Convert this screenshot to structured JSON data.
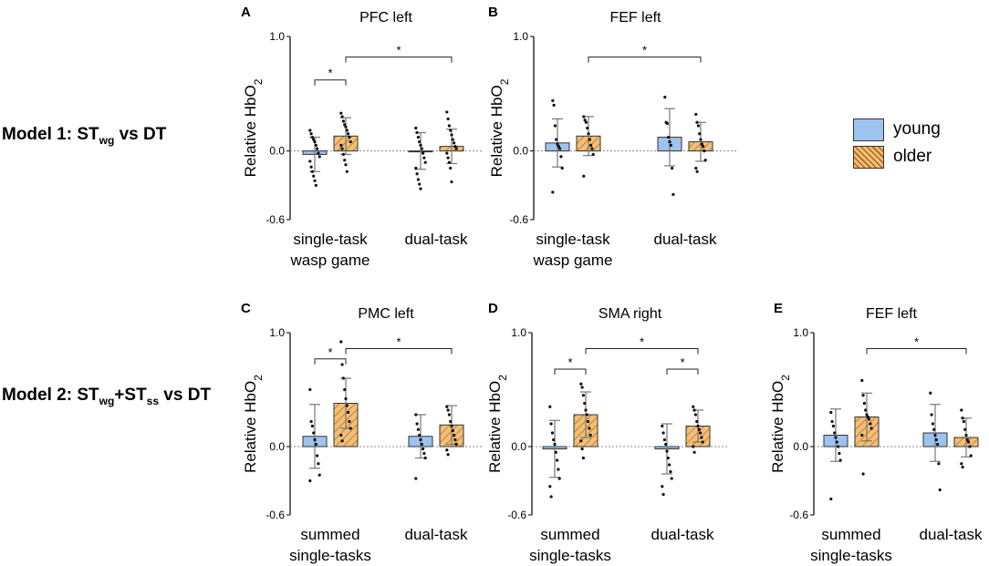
{
  "colors": {
    "young": "#9DC3F0",
    "older": "#F3BF77",
    "hatch": "#A8681E",
    "axis": "#000000",
    "error": "#777777"
  },
  "models": [
    {
      "prefix": "Model 1: ST",
      "sub1": "wg",
      "mid": " vs DT",
      "sub2": "",
      "tail": ""
    },
    {
      "prefix": "Model 2: ST",
      "sub1": "wg",
      "mid": "+ST",
      "sub2": "ss",
      "tail": " vs DT"
    }
  ],
  "legend": {
    "young": "young",
    "older": "older"
  },
  "chart_data": [
    {
      "type": "bar",
      "letter": "A",
      "title": "PFC left",
      "ylabel": "Relative HbO",
      "ylabel_sub": "2",
      "ylim": [
        -0.6,
        1.0
      ],
      "yticks": [
        "1.0",
        "0.0",
        "-0.6"
      ],
      "categories": [
        [
          "single-task",
          "wasp game"
        ],
        [
          "dual-task"
        ]
      ],
      "series": [
        {
          "name": "young",
          "values": [
            -0.03,
            0.0
          ],
          "err": [
            0.15,
            0.16
          ],
          "points": [
            [
              0.18,
              0.15,
              0.12,
              0.1,
              0.08,
              0.05,
              0.02,
              -0.02,
              -0.05,
              -0.09,
              -0.14,
              -0.18,
              -0.22,
              -0.26,
              -0.3
            ],
            [
              0.2,
              0.16,
              0.12,
              0.08,
              0.05,
              0.02,
              -0.02,
              -0.06,
              -0.1,
              -0.15,
              -0.2,
              -0.25,
              -0.29,
              -0.33
            ]
          ]
        },
        {
          "name": "older",
          "values": [
            0.13,
            0.04
          ],
          "err": [
            0.16,
            0.15
          ],
          "points": [
            [
              0.33,
              0.3,
              0.26,
              0.23,
              0.21,
              0.18,
              0.15,
              0.12,
              0.08,
              0.05,
              0.02,
              -0.03,
              -0.08,
              -0.12,
              -0.18
            ],
            [
              0.34,
              0.28,
              0.22,
              0.18,
              0.14,
              0.1,
              0.07,
              0.04,
              0.02,
              -0.02,
              -0.06,
              -0.1,
              -0.15,
              -0.27
            ]
          ]
        }
      ],
      "sig": [
        {
          "g1": 0,
          "s1": 0,
          "g2": 0,
          "s2": 1,
          "y": 0.62,
          "label": "*"
        },
        {
          "g1": 0,
          "s1": 1,
          "g2": 1,
          "s2": 1,
          "y": 0.82,
          "label": "*"
        }
      ]
    },
    {
      "type": "bar",
      "letter": "B",
      "title": "FEF left",
      "ylabel": "Relative HbO",
      "ylabel_sub": "2",
      "ylim": [
        -0.6,
        1.0
      ],
      "yticks": [
        "1.0",
        "0.0",
        "-0.6"
      ],
      "categories": [
        [
          "single-task",
          "wasp game"
        ],
        [
          "dual-task"
        ]
      ],
      "series": [
        {
          "name": "young",
          "values": [
            0.07,
            0.12
          ],
          "err": [
            0.21,
            0.25
          ],
          "points": [
            [
              0.44,
              0.4,
              0.22,
              0.1,
              0.06,
              0.04,
              0.02,
              -0.05,
              -0.15,
              -0.36
            ],
            [
              0.47,
              0.25,
              0.24,
              0.12,
              0.08,
              0.05,
              -0.15,
              -0.38
            ]
          ]
        },
        {
          "name": "older",
          "values": [
            0.13,
            0.08
          ],
          "err": [
            0.17,
            0.17
          ],
          "points": [
            [
              0.3,
              0.27,
              0.25,
              0.2,
              0.15,
              0.1,
              0.05,
              0.02,
              -0.03,
              -0.22
            ],
            [
              0.32,
              0.25,
              0.22,
              0.15,
              0.1,
              0.06,
              0.04,
              0.0,
              -0.08,
              -0.15,
              -0.18
            ]
          ]
        }
      ],
      "sig": [
        {
          "g1": 0,
          "s1": 1,
          "g2": 1,
          "s2": 1,
          "y": 0.82,
          "label": "*"
        }
      ]
    },
    {
      "type": "bar",
      "letter": "C",
      "title": "PMC left",
      "ylabel": "Relative HbO",
      "ylabel_sub": "2",
      "ylim": [
        -0.6,
        1.0
      ],
      "yticks": [
        "1.0",
        "0.0",
        "-0.6"
      ],
      "categories": [
        [
          "summed",
          "single-tasks"
        ],
        [
          "dual-task"
        ]
      ],
      "series": [
        {
          "name": "young",
          "values": [
            0.09,
            0.09
          ],
          "err": [
            0.28,
            0.19
          ],
          "points": [
            [
              0.5,
              0.22,
              0.18,
              0.12,
              0.06,
              0.02,
              -0.08,
              -0.15,
              -0.25,
              -0.3
            ],
            [
              0.28,
              0.2,
              0.15,
              0.1,
              0.06,
              0.02,
              -0.02,
              -0.06,
              -0.1,
              -0.28
            ]
          ]
        },
        {
          "name": "older",
          "values": [
            0.38,
            0.19
          ],
          "err": [
            0.22,
            0.17
          ],
          "points": [
            [
              0.92,
              0.72,
              0.6,
              0.5,
              0.42,
              0.36,
              0.3,
              0.22,
              0.16,
              0.1,
              0.05
            ],
            [
              0.35,
              0.32,
              0.28,
              0.22,
              0.18,
              0.14,
              0.1,
              0.06,
              0.02,
              -0.03,
              -0.07
            ]
          ]
        }
      ],
      "sig": [
        {
          "g1": 0,
          "s1": 0,
          "g2": 0,
          "s2": 1,
          "y": 0.77,
          "label": "*"
        },
        {
          "g1": 0,
          "s1": 1,
          "g2": 1,
          "s2": 1,
          "y": 0.86,
          "label": "*"
        }
      ]
    },
    {
      "type": "bar",
      "letter": "D",
      "title": "SMA right",
      "ylabel": "Relative HbO",
      "ylabel_sub": "2",
      "ylim": [
        -0.6,
        1.0
      ],
      "yticks": [
        "1.0",
        "0.0",
        "-0.6"
      ],
      "categories": [
        [
          "summed",
          "single-tasks"
        ],
        [
          "dual-task"
        ]
      ],
      "series": [
        {
          "name": "young",
          "values": [
            -0.02,
            -0.02
          ],
          "err": [
            0.25,
            0.22
          ],
          "points": [
            [
              0.35,
              0.2,
              0.12,
              0.06,
              0.02,
              -0.05,
              -0.12,
              -0.2,
              -0.28,
              -0.35,
              -0.44
            ],
            [
              0.18,
              0.12,
              0.06,
              0.02,
              -0.04,
              -0.1,
              -0.16,
              -0.22,
              -0.28,
              -0.35,
              -0.42
            ]
          ]
        },
        {
          "name": "older",
          "values": [
            0.28,
            0.18
          ],
          "err": [
            0.2,
            0.14
          ],
          "points": [
            [
              0.55,
              0.52,
              0.45,
              0.38,
              0.32,
              0.28,
              0.22,
              0.16,
              0.1,
              0.05,
              -0.02,
              -0.1
            ],
            [
              0.35,
              0.32,
              0.28,
              0.22,
              0.18,
              0.15,
              0.12,
              0.08,
              0.04,
              0.0,
              -0.05
            ]
          ]
        }
      ],
      "sig": [
        {
          "g1": 0,
          "s1": 0,
          "g2": 0,
          "s2": 1,
          "y": 0.68,
          "label": "*"
        },
        {
          "g1": 0,
          "s1": 1,
          "g2": 1,
          "s2": 1,
          "y": 0.86,
          "label": "*"
        },
        {
          "g1": 1,
          "s1": 0,
          "g2": 1,
          "s2": 1,
          "y": 0.68,
          "label": "*"
        }
      ]
    },
    {
      "type": "bar",
      "letter": "E",
      "title": "FEF left",
      "ylabel": "Relative HbO",
      "ylabel_sub": "2",
      "ylim": [
        -0.6,
        1.0
      ],
      "yticks": [
        "1.0",
        "0.0",
        "-0.6"
      ],
      "categories": [
        [
          "summed",
          "single-tasks"
        ],
        [
          "dual-task"
        ]
      ],
      "series": [
        {
          "name": "young",
          "values": [
            0.1,
            0.12
          ],
          "err": [
            0.23,
            0.25
          ],
          "points": [
            [
              0.3,
              0.22,
              0.18,
              0.12,
              0.08,
              0.04,
              0.0,
              -0.06,
              -0.12,
              -0.46
            ],
            [
              0.47,
              0.28,
              0.2,
              0.15,
              0.1,
              0.06,
              0.02,
              -0.15,
              -0.38
            ]
          ]
        },
        {
          "name": "older",
          "values": [
            0.26,
            0.08
          ],
          "err": [
            0.21,
            0.17
          ],
          "points": [
            [
              0.58,
              0.45,
              0.38,
              0.32,
              0.28,
              0.26,
              0.24,
              0.2,
              0.16,
              0.1,
              -0.24
            ],
            [
              0.32,
              0.25,
              0.22,
              0.15,
              0.1,
              0.06,
              0.04,
              0.0,
              -0.08,
              -0.15,
              -0.18
            ]
          ]
        }
      ],
      "sig": [
        {
          "g1": 0,
          "s1": 1,
          "g2": 1,
          "s2": 1,
          "y": 0.86,
          "label": "*"
        }
      ]
    }
  ]
}
